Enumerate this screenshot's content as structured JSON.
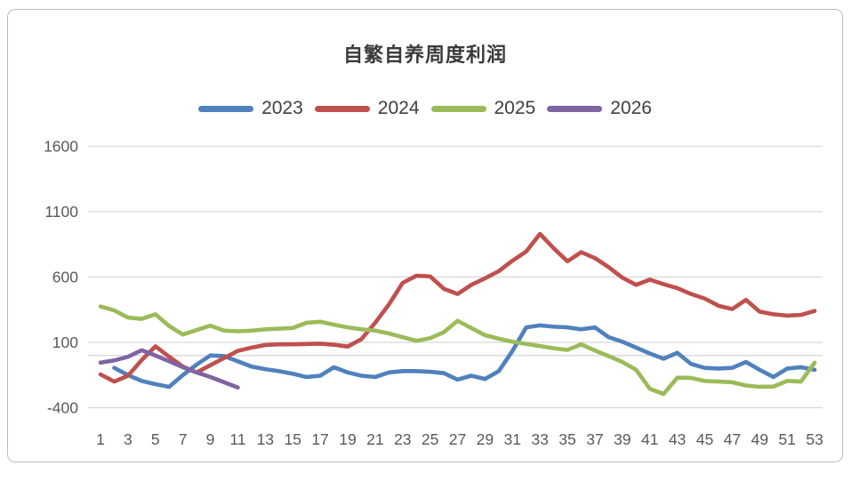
{
  "chart_data": {
    "type": "line",
    "title": "自繁自养周度利润",
    "xlabel": "",
    "ylabel": "",
    "grid": true,
    "legend_position": "top",
    "ylim": [
      -400,
      1600
    ],
    "y_ticks": [
      1600,
      1100,
      600,
      100,
      -400
    ],
    "x": [
      1,
      2,
      3,
      4,
      5,
      6,
      7,
      8,
      9,
      10,
      11,
      12,
      13,
      14,
      15,
      16,
      17,
      18,
      19,
      20,
      21,
      22,
      23,
      24,
      25,
      26,
      27,
      28,
      29,
      30,
      31,
      32,
      33,
      34,
      35,
      36,
      37,
      38,
      39,
      40,
      41,
      42,
      43,
      44,
      45,
      46,
      47,
      48,
      49,
      50,
      51,
      52,
      53
    ],
    "x_tick_labels": [
      1,
      3,
      5,
      7,
      9,
      11,
      13,
      15,
      17,
      19,
      21,
      23,
      25,
      27,
      29,
      31,
      33,
      35,
      37,
      39,
      41,
      43,
      45,
      47,
      49,
      51,
      53
    ],
    "series": [
      {
        "name": "2023",
        "color": "#4F81BD",
        "values": [
          null,
          -95,
          -150,
          -195,
          -220,
          -240,
          -150,
          -70,
          0,
          -5,
          -45,
          -85,
          -105,
          -120,
          -140,
          -165,
          -155,
          -90,
          -130,
          -155,
          -165,
          -130,
          -120,
          -120,
          -125,
          -135,
          -185,
          -155,
          -180,
          -120,
          35,
          215,
          230,
          220,
          215,
          200,
          215,
          140,
          105,
          60,
          15,
          -25,
          20,
          -65,
          -95,
          -100,
          -95,
          -50,
          -110,
          -165,
          -100,
          -90,
          -110
        ]
      },
      {
        "name": "2024",
        "color": "#C0504D",
        "values": [
          -145,
          -200,
          -155,
          -35,
          70,
          -10,
          -85,
          -130,
          -75,
          -20,
          35,
          60,
          80,
          85,
          85,
          88,
          90,
          82,
          68,
          125,
          250,
          390,
          555,
          610,
          605,
          510,
          470,
          540,
          590,
          645,
          725,
          795,
          930,
          820,
          720,
          790,
          745,
          675,
          595,
          540,
          580,
          545,
          515,
          470,
          435,
          380,
          355,
          425,
          335,
          315,
          305,
          310,
          340
        ]
      },
      {
        "name": "2025",
        "color": "#9BBB59",
        "values": [
          375,
          345,
          290,
          280,
          315,
          225,
          160,
          195,
          228,
          190,
          185,
          190,
          200,
          205,
          210,
          250,
          258,
          235,
          215,
          200,
          190,
          168,
          140,
          112,
          132,
          178,
          265,
          210,
          155,
          128,
          105,
          88,
          72,
          55,
          42,
          85,
          38,
          -5,
          -50,
          -110,
          -255,
          -295,
          -170,
          -172,
          -195,
          -200,
          -205,
          -230,
          -240,
          -238,
          -195,
          -200,
          -55
        ]
      },
      {
        "name": "2026",
        "color": "#8064A2",
        "values": [
          -55,
          -38,
          -10,
          40,
          0,
          -45,
          -90,
          -130,
          -165,
          -205,
          -245
        ]
      }
    ]
  }
}
